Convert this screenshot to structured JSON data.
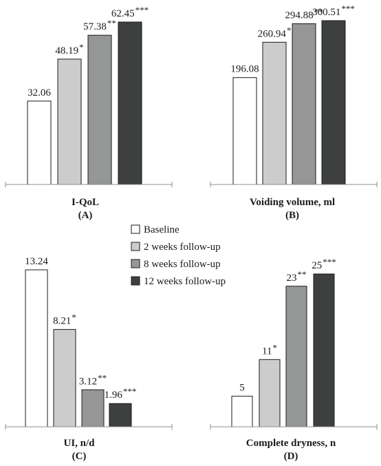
{
  "legend": {
    "entries": [
      "Baseline",
      "2 weeks follow-up",
      "8 weeks follow-up",
      "12 weeks follow-up"
    ],
    "colors": [
      "#ffffff",
      "#cbcccb",
      "#959796",
      "#3e3f3f"
    ]
  },
  "chart_data": [
    {
      "type": "bar",
      "xlabel": "I-QoL",
      "panel": "(A)",
      "series_names": [
        "Baseline",
        "2 weeks follow-up",
        "8 weeks follow-up",
        "12 weeks follow-up"
      ],
      "values": [
        32.06,
        48.19,
        57.38,
        62.45
      ],
      "labels": [
        "32.06",
        "48.19",
        "57.38",
        "62.45"
      ],
      "significance": [
        "",
        "*",
        "**",
        "***"
      ],
      "ylim": [
        0,
        62.45
      ]
    },
    {
      "type": "bar",
      "xlabel": "Voiding volume, ml",
      "panel": "(B)",
      "series_names": [
        "Baseline",
        "2 weeks follow-up",
        "8 weeks follow-up",
        "12 weeks follow-up"
      ],
      "values": [
        196.08,
        260.94,
        294.88,
        300.51
      ],
      "labels": [
        "196.08",
        "260.94",
        "294.88",
        "300.51"
      ],
      "significance": [
        "",
        "*",
        "**",
        "***"
      ],
      "ylim": [
        0,
        300.51
      ]
    },
    {
      "type": "bar",
      "xlabel": "UI, n/d",
      "panel": "(C)",
      "series_names": [
        "Baseline",
        "2 weeks follow-up",
        "8 weeks follow-up",
        "12 weeks follow-up"
      ],
      "values": [
        13.24,
        8.21,
        3.12,
        1.96
      ],
      "labels": [
        "13.24",
        "8.21",
        "3.12",
        "1.96"
      ],
      "significance": [
        "",
        "*",
        "**",
        "***"
      ],
      "ylim": [
        0,
        13.24
      ]
    },
    {
      "type": "bar",
      "xlabel": "Complete dryness, n",
      "panel": "(D)",
      "series_names": [
        "Baseline",
        "2 weeks follow-up",
        "8 weeks follow-up",
        "12 weeks follow-up"
      ],
      "values": [
        5,
        11,
        23,
        25
      ],
      "labels": [
        "5",
        "11",
        "23",
        "25"
      ],
      "significance": [
        "",
        "*",
        "**",
        "***"
      ],
      "ylim": [
        0,
        25
      ]
    }
  ]
}
